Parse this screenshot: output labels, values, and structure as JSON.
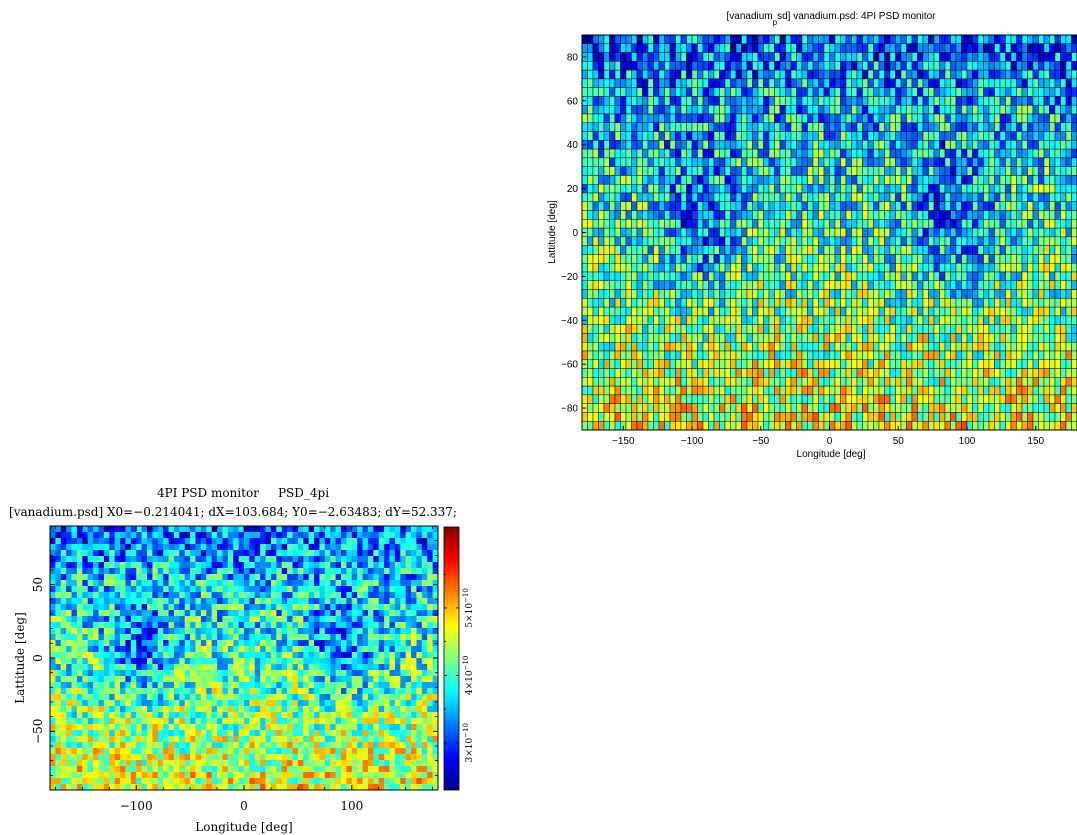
{
  "chart_data": [
    {
      "type": "heatmap",
      "title_parts": {
        "open": "[vanadium",
        "sub": "p",
        "rest": "sd] vanadium.psd: 4PI PSD monitor"
      },
      "xlabel": "Longitude [deg]",
      "ylabel": "Lattitude [deg]",
      "xlim": [
        -180,
        180
      ],
      "ylim": [
        -90,
        90
      ],
      "xticks": [
        -150,
        -100,
        -50,
        0,
        50,
        100,
        150
      ],
      "yticks": [
        -80,
        -60,
        -40,
        -20,
        0,
        20,
        40,
        60,
        80
      ],
      "grid_cols": 90,
      "grid_rows": 45,
      "cell_edges": true,
      "colormap": "jet"
    },
    {
      "type": "heatmap",
      "title_line1": "4PI PSD monitor     PSD_4pi",
      "title_line2": "[vanadium.psd] X0=−0.214041; dX=103.684; Y0=−2.63483; dY=52.337;",
      "xlabel": "Longitude [deg]",
      "ylabel": "Lattitude [deg]",
      "xlim": [
        -180,
        180
      ],
      "ylim": [
        -90,
        90
      ],
      "xticks": [
        -100,
        0,
        100
      ],
      "yticks": [
        -50,
        0,
        50
      ],
      "grid_cols": 72,
      "grid_rows": 44,
      "cell_edges": false,
      "colormap": "jet",
      "colorbar": {
        "range": [
          2.3e-10,
          6.2e-10
        ],
        "ticks": [
          {
            "value": 3e-10,
            "mantissa": "3×10",
            "exp": "−10"
          },
          {
            "value": 4e-10,
            "mantissa": "4×10",
            "exp": "−10"
          },
          {
            "value": 5e-10,
            "mantissa": "5×10",
            "exp": "−10"
          }
        ]
      }
    }
  ]
}
